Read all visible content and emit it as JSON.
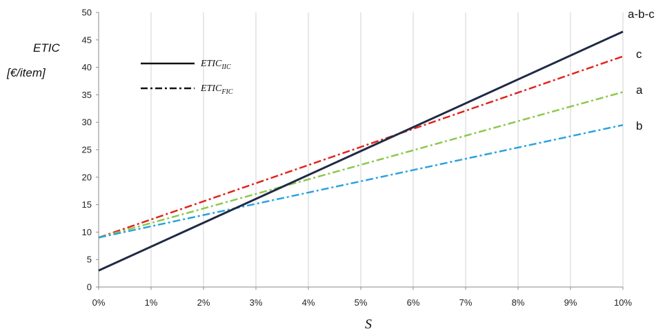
{
  "chart_data": {
    "type": "line",
    "ylabel_line1": "ETIC",
    "ylabel_line2": "[€/item]",
    "xlabel": "S",
    "xlim": [
      0,
      10
    ],
    "ylim": [
      0,
      50
    ],
    "x_ticks": [
      "0%",
      "1%",
      "2%",
      "3%",
      "4%",
      "5%",
      "6%",
      "7%",
      "8%",
      "9%",
      "10%"
    ],
    "y_ticks": [
      "0",
      "5",
      "10",
      "15",
      "20",
      "25",
      "30",
      "35",
      "40",
      "45",
      "50"
    ],
    "grid": "vertical",
    "legend": [
      {
        "base": "ETIC",
        "subscript": "IIC",
        "style": "solid"
      },
      {
        "base": "ETIC",
        "subscript": "FIC",
        "style": "dash-dot"
      }
    ],
    "series": [
      {
        "name": "a-b-c",
        "label_end": "a-b-c",
        "style": "solid",
        "color": "#1f2a44",
        "x": [
          0,
          10
        ],
        "y": [
          3.0,
          46.5
        ]
      },
      {
        "name": "c",
        "label_end": "c",
        "style": "dash-dot",
        "color": "#e0241b",
        "x": [
          0,
          10
        ],
        "y": [
          9.0,
          42.0
        ]
      },
      {
        "name": "a",
        "label_end": "a",
        "style": "dash-dot",
        "color": "#8cc84b",
        "x": [
          0,
          10
        ],
        "y": [
          9.0,
          35.5
        ]
      },
      {
        "name": "b",
        "label_end": "b",
        "style": "dash-dot",
        "color": "#2aa3dc",
        "x": [
          0,
          10
        ],
        "y": [
          9.0,
          29.5
        ]
      }
    ]
  }
}
